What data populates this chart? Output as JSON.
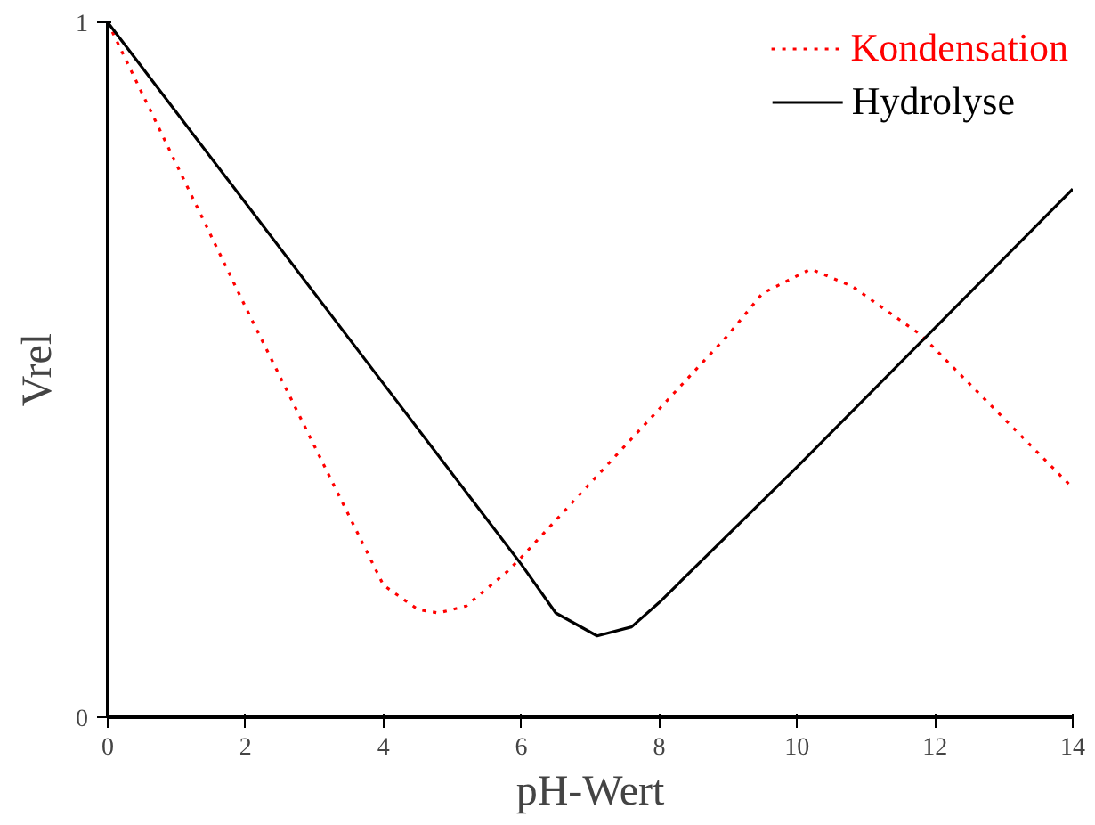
{
  "chart_data": {
    "type": "line",
    "xlabel": "pH-Wert",
    "ylabel": "Vrel",
    "xlim": [
      0,
      14
    ],
    "ylim": [
      0,
      1
    ],
    "xticks": [
      0,
      2,
      4,
      6,
      8,
      10,
      12,
      14
    ],
    "yticks": [
      0,
      1
    ],
    "grid": false,
    "legend": "top right",
    "series": [
      {
        "name": "Kondensation",
        "color": "#ff0000",
        "line_style": "dotted",
        "x": [
          0,
          2,
          3.7,
          4,
          4.5,
          4.8,
          5.2,
          5.8,
          6,
          9,
          9.5,
          10.2,
          10.8,
          11.8,
          14
        ],
        "values": [
          1,
          0.59,
          0.25,
          0.19,
          0.155,
          0.15,
          0.16,
          0.21,
          0.23,
          0.55,
          0.61,
          0.645,
          0.62,
          0.55,
          0.33
        ]
      },
      {
        "name": "Hydrolyse",
        "color": "#000000",
        "line_style": "solid",
        "x": [
          0,
          2,
          4,
          5.5,
          6,
          6.5,
          7.1,
          7.6,
          8,
          10,
          12,
          14
        ],
        "values": [
          1,
          0.74,
          0.48,
          0.285,
          0.22,
          0.15,
          0.117,
          0.13,
          0.165,
          0.36,
          0.56,
          0.76
        ]
      }
    ]
  }
}
